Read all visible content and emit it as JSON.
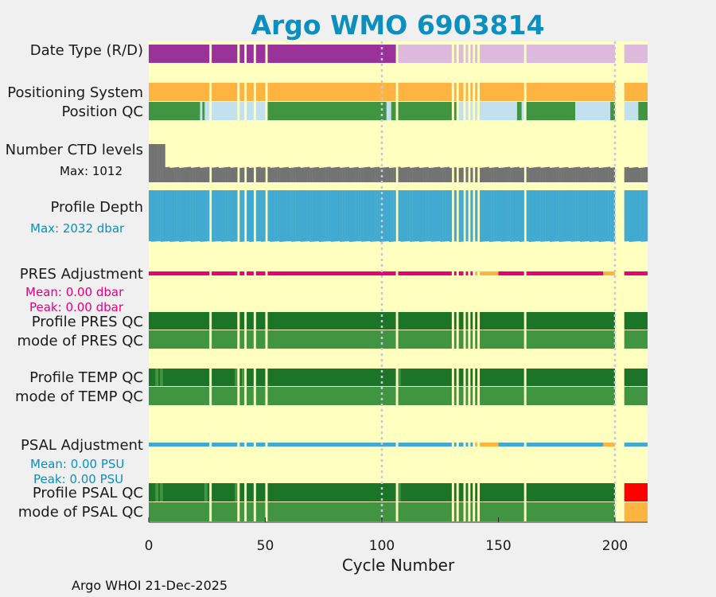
{
  "title": "Argo WMO 6903814",
  "footer": "Argo WHOI 21-Dec-2025",
  "colors": {
    "background": "#ffffc0",
    "delayed_mode": "#993399",
    "realtime_mode": "#ddb9dd",
    "gps": "#ffb340",
    "qc_good": "#419542",
    "qc_interp": "#c2e0ee",
    "profile_qc_A": "#1b7428",
    "qc_bad": "#ff0000",
    "qc_orange": "#ffb340",
    "ctd_levels": "#737373",
    "profile_depth": "#42aad0",
    "pres_adj": "#e6007e",
    "psal_adj": "#42aad0",
    "grid": "#c8c8dc"
  },
  "labels": {
    "data_type": "Date Type (R/D)",
    "positioning_system": "Positioning System",
    "position_qc": "Position QC",
    "ctd_levels": "Number CTD levels",
    "ctd_max": "Max: 1012",
    "profile_depth": "Profile Depth",
    "depth_max": "Max: 2032 dbar",
    "pres_adj": "PRES Adjustment",
    "pres_mean": "Mean: 0.00 dbar",
    "pres_peak": "Peak: 0.00 dbar",
    "profile_pres_qc": "Profile PRES QC",
    "mode_pres_qc": "mode of PRES QC",
    "profile_temp_qc": "Profile TEMP QC",
    "mode_temp_qc": "mode of TEMP QC",
    "psal_adj": "PSAL Adjustment",
    "psal_mean": "Mean: 0.00 PSU",
    "psal_peak": "Peak: 0.00 PSU",
    "profile_psal_qc": "Profile PSAL QC",
    "mode_psal_qc": "mode of PSAL QC"
  },
  "chart_data": {
    "type": "bar",
    "xlabel": "Cycle Number",
    "xlim": [
      0,
      214
    ],
    "xticks": [
      "0",
      "50",
      "100",
      "150",
      "200"
    ],
    "xtick_values": [
      0,
      50,
      100,
      150,
      200
    ],
    "gridlines_x": [
      100,
      200
    ],
    "missing_cycles": [
      26,
      38,
      41,
      45,
      50,
      106,
      130,
      132,
      135,
      137,
      139,
      141,
      161,
      200,
      201,
      202,
      203
    ],
    "data_type": {
      "delayed_mode_until": 106,
      "last_cycle": 214
    },
    "position_qc_interpolated_ranges": [
      [
        22,
        23
      ],
      [
        24,
        51
      ],
      [
        102,
        104
      ],
      [
        133,
        158
      ],
      [
        160,
        161
      ],
      [
        183,
        198
      ],
      [
        204,
        210
      ]
    ],
    "ctd_levels": {
      "max": 1012,
      "first_cycles_levels": 1012,
      "typical_levels": 380
    },
    "profile_depth": {
      "max": 2032,
      "typical": 2000
    },
    "pres_adjustment": {
      "mean": 0.0,
      "peak": 0.0,
      "flagged_orange_ranges": [
        [
          139,
          150
        ],
        [
          195,
          200
        ]
      ]
    },
    "profile_temp_qc_light_cycles": [
      3,
      5,
      37,
      40,
      107,
      130
    ],
    "mode_psal_qc_light_cycles": [
      24,
      37,
      130,
      134
    ],
    "psal_adjustment": {
      "mean": 0.0,
      "peak": 0.0,
      "flagged_orange_ranges": [
        [
          139,
          150
        ],
        [
          195,
          200
        ]
      ]
    },
    "profile_psal_qc_light_cycles": [
      3,
      5,
      24,
      37,
      107,
      130
    ],
    "psal_qc_bad_from": 204
  }
}
